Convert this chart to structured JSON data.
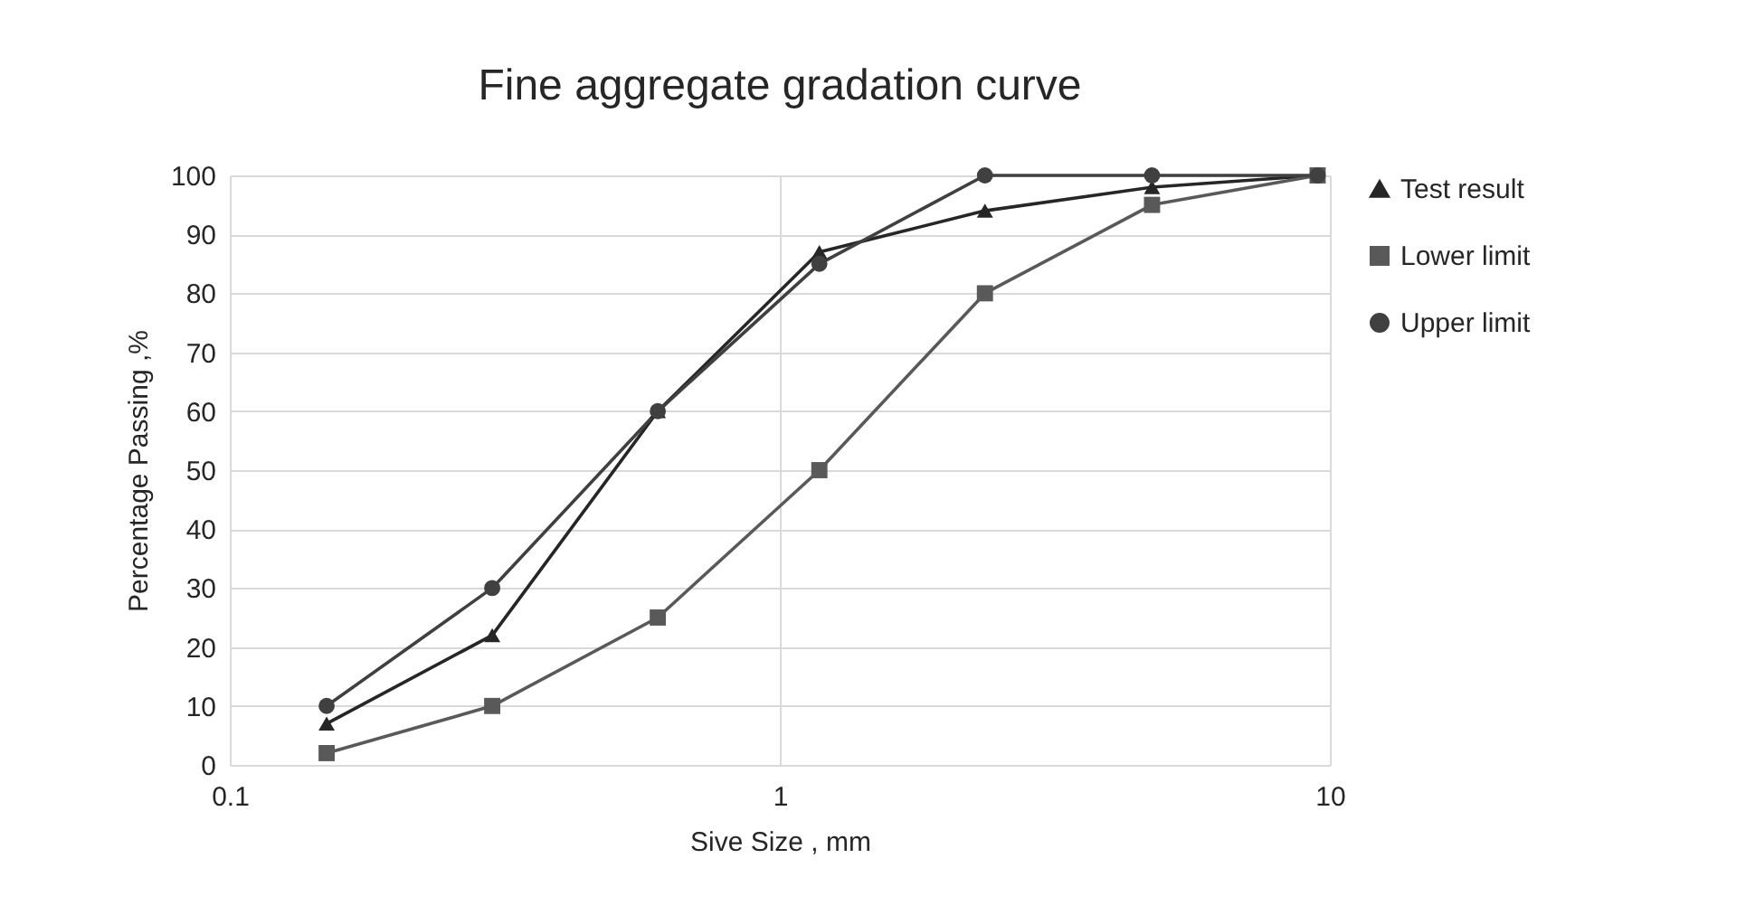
{
  "chart_data": {
    "type": "line",
    "title": "Fine aggregate gradation curve",
    "xlabel": "Sive Size , mm",
    "ylabel": "Percentage Passing ,%",
    "x": [
      0.15,
      0.3,
      0.6,
      1.18,
      2.36,
      4.75,
      9.5
    ],
    "series": [
      {
        "name": "Test result",
        "color": "#262626",
        "marker": "triangle",
        "values": [
          7,
          22,
          60,
          87,
          94,
          98,
          100
        ]
      },
      {
        "name": "Lower limit",
        "color": "#595959",
        "marker": "square",
        "values": [
          2,
          10,
          25,
          50,
          80,
          95,
          100
        ]
      },
      {
        "name": "Upper limit",
        "color": "#404040",
        "marker": "circle",
        "values": [
          10,
          30,
          60,
          85,
          100,
          100,
          100
        ]
      }
    ],
    "log": "x",
    "xlim": [
      0.1,
      10
    ],
    "xticks": [
      0.1,
      1,
      10
    ],
    "ylim": [
      0,
      100
    ],
    "yticks": [
      0,
      10,
      20,
      30,
      40,
      50,
      60,
      70,
      80,
      90,
      100
    ],
    "grid": true,
    "legend": "right",
    "line_style": "solid"
  }
}
